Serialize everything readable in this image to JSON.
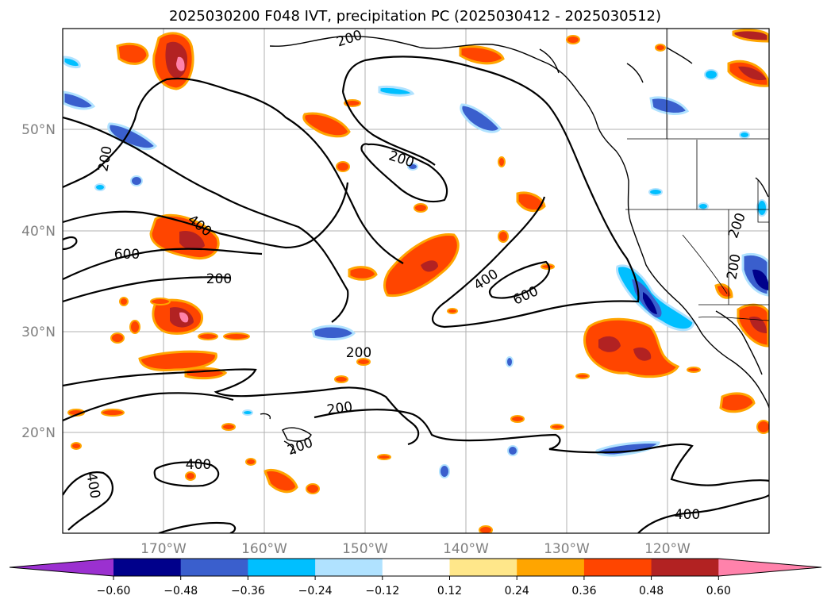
{
  "title": "2025030200 F048 IVT, precipitation PC (2025030412 - 2025030512)",
  "map": {
    "lon_range": [
      -180,
      -110
    ],
    "lat_range": [
      10,
      60
    ],
    "x_ticks": [
      "170°W",
      "160°W",
      "150°W",
      "140°W",
      "130°W",
      "120°W"
    ],
    "y_ticks": [
      "20°N",
      "30°N",
      "40°N",
      "50°N"
    ],
    "grid": true
  },
  "ivt_contour_labels": [
    "200",
    "200",
    "200",
    "400",
    "600",
    "200",
    "200",
    "600",
    "400",
    "200",
    "200",
    "200",
    "400",
    "400",
    "200",
    "200",
    "400"
  ],
  "colorbar": {
    "ticks": [
      "−0.60",
      "−0.48",
      "−0.36",
      "−0.24",
      "−0.12",
      "0.12",
      "0.24",
      "0.36",
      "0.48",
      "0.60"
    ],
    "colors": [
      "#9b30d0",
      "#00008b",
      "#3a5fcd",
      "#00bfff",
      "#b0e2ff",
      "#ffffff",
      "#ffe78a",
      "#ffa500",
      "#ff4500",
      "#b22222",
      "#ff82ab"
    ]
  }
}
